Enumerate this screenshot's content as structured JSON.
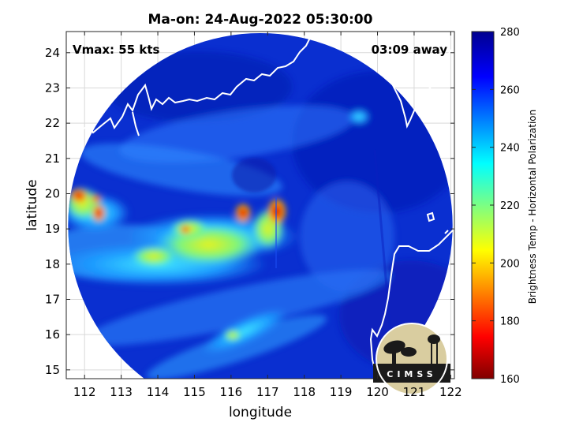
{
  "figure": {
    "title": "Ma-on: 24-Aug-2022 05:30:00",
    "vmax_label": "Vmax: 55 kts",
    "time_away_label": "03:09 away",
    "xlabel": "longitude",
    "ylabel": "latitude",
    "colorbar_label": "Brightness Temp - Horizontal Polarization",
    "logo_text": "CIMSS",
    "x_ticks": [
      "112",
      "113",
      "114",
      "115",
      "116",
      "117",
      "118",
      "119",
      "120",
      "121",
      "122"
    ],
    "y_ticks": [
      "15",
      "16",
      "17",
      "18",
      "19",
      "20",
      "21",
      "22",
      "23",
      "24"
    ],
    "colorbar_ticks": [
      "160",
      "180",
      "200",
      "220",
      "240",
      "260",
      "280"
    ],
    "xlim": [
      111.5,
      122.1
    ],
    "ylim": [
      14.75,
      24.6
    ],
    "clim": [
      160,
      280
    ],
    "colormap": "jet",
    "grid": true,
    "swath_center": [
      116.8,
      19.1
    ],
    "swath_radius_deg": 5.25
  }
}
